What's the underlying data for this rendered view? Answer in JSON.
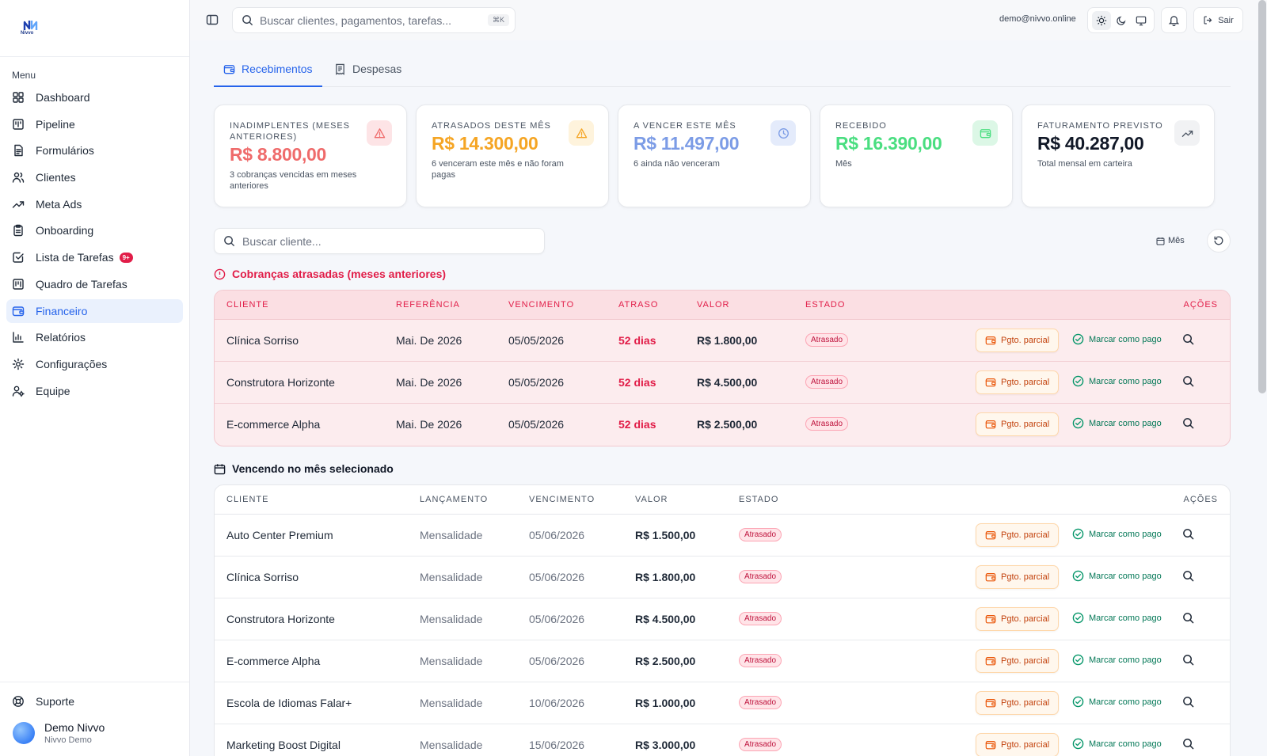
{
  "brand": {
    "logo_text": "Nivvo"
  },
  "sidebar": {
    "menu_label": "Menu",
    "items": [
      {
        "label": "Dashboard",
        "icon": "dashboard-icon"
      },
      {
        "label": "Pipeline",
        "icon": "pipeline-icon"
      },
      {
        "label": "Formulários",
        "icon": "forms-icon"
      },
      {
        "label": "Clientes",
        "icon": "users-icon"
      },
      {
        "label": "Meta Ads",
        "icon": "trending-up-icon"
      },
      {
        "label": "Onboarding",
        "icon": "clipboard-icon"
      },
      {
        "label": "Lista de Tarefas",
        "icon": "checkbox-icon",
        "badge": "9+"
      },
      {
        "label": "Quadro de Tarefas",
        "icon": "kanban-icon"
      },
      {
        "label": "Financeiro",
        "icon": "wallet-icon",
        "active": true
      },
      {
        "label": "Relatórios",
        "icon": "bar-chart-icon"
      },
      {
        "label": "Configurações",
        "icon": "gear-icon"
      },
      {
        "label": "Equipe",
        "icon": "team-icon"
      }
    ],
    "support_label": "Suporte",
    "user": {
      "name": "Demo Nivvo",
      "org": "Nivvo Demo"
    }
  },
  "header": {
    "search_placeholder": "Buscar clientes, pagamentos, tarefas...",
    "shortcut": "⌘K",
    "email": "demo@nivvo.online",
    "logout_label": "Sair"
  },
  "tabs": [
    {
      "label": "Recebimentos",
      "active": true
    },
    {
      "label": "Despesas",
      "active": false
    }
  ],
  "cards": [
    {
      "label": "Inadimplentes (meses anteriores)",
      "value": "R$ 8.800,00",
      "sub": "3 cobranças vencidas em meses anteriores",
      "color": "#ef6b6b"
    },
    {
      "label": "Atrasados deste mês",
      "value": "R$ 14.300,00",
      "sub": "6 venceram este mês e não foram pagas",
      "color": "#f5a524"
    },
    {
      "label": "A vencer este mês",
      "value": "R$ 11.497,00",
      "sub": "6 ainda não venceram",
      "color": "#7c9ce6"
    },
    {
      "label": "Recebido",
      "value": "R$ 16.390,00",
      "sub": "Mês",
      "color": "#4ade80"
    },
    {
      "label": "Faturamento previsto",
      "value": "R$ 40.287,00",
      "sub": "Total mensal em carteira",
      "color": "#111827"
    }
  ],
  "filters": {
    "client_search_placeholder": "Buscar cliente...",
    "month_label": "Mês"
  },
  "overdue": {
    "title": "Cobranças atrasadas (meses anteriores)",
    "columns": [
      "Cliente",
      "Referência",
      "Vencimento",
      "Atraso",
      "Valor",
      "Estado",
      "Ações"
    ],
    "rows": [
      {
        "cliente": "Clínica Sorriso",
        "referencia": "Mai. De 2026",
        "vencimento": "05/05/2026",
        "atraso": "52 dias",
        "valor": "R$ 1.800,00",
        "estado": "Atrasado"
      },
      {
        "cliente": "Construtora Horizonte",
        "referencia": "Mai. De 2026",
        "vencimento": "05/05/2026",
        "atraso": "52 dias",
        "valor": "R$ 4.500,00",
        "estado": "Atrasado"
      },
      {
        "cliente": "E-commerce Alpha",
        "referencia": "Mai. De 2026",
        "vencimento": "05/05/2026",
        "atraso": "52 dias",
        "valor": "R$ 2.500,00",
        "estado": "Atrasado"
      }
    ]
  },
  "due": {
    "title": "Vencendo no mês selecionado",
    "columns": [
      "Cliente",
      "Lançamento",
      "Vencimento",
      "Valor",
      "Estado",
      "Ações"
    ],
    "rows": [
      {
        "cliente": "Auto Center Premium",
        "lancamento": "Mensalidade",
        "vencimento": "05/06/2026",
        "valor": "R$ 1.500,00",
        "estado": "Atrasado"
      },
      {
        "cliente": "Clínica Sorriso",
        "lancamento": "Mensalidade",
        "vencimento": "05/06/2026",
        "valor": "R$ 1.800,00",
        "estado": "Atrasado"
      },
      {
        "cliente": "Construtora Horizonte",
        "lancamento": "Mensalidade",
        "vencimento": "05/06/2026",
        "valor": "R$ 4.500,00",
        "estado": "Atrasado"
      },
      {
        "cliente": "E-commerce Alpha",
        "lancamento": "Mensalidade",
        "vencimento": "05/06/2026",
        "valor": "R$ 2.500,00",
        "estado": "Atrasado"
      },
      {
        "cliente": "Escola de Idiomas Falar+",
        "lancamento": "Mensalidade",
        "vencimento": "10/06/2026",
        "valor": "R$ 1.000,00",
        "estado": "Atrasado"
      },
      {
        "cliente": "Marketing Boost Digital",
        "lancamento": "Mensalidade",
        "vencimento": "15/06/2026",
        "valor": "R$ 3.000,00",
        "estado": "Atrasado"
      }
    ]
  },
  "actions": {
    "partial_label": "Pgto. parcial",
    "paid_label": "Marcar como pago"
  },
  "colors": {
    "accent": "#2563eb",
    "danger": "#e11d48",
    "warning": "#c2410c",
    "success": "#047857"
  }
}
